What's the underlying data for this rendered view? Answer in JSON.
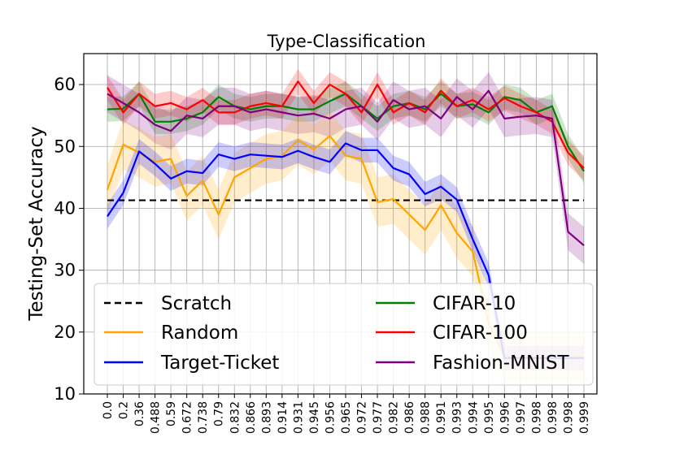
{
  "chart_data": {
    "type": "line",
    "title": "Type-Classification",
    "xlabel": "",
    "ylabel": "Testing-Set Accuracy",
    "ylim": [
      10,
      65
    ],
    "yticks": [
      10,
      20,
      30,
      40,
      50,
      60
    ],
    "grid": true,
    "legend_position": "lower-center",
    "categories": [
      "0.0",
      "0.2",
      "0.36",
      "0.488",
      "0.59",
      "0.672",
      "0.738",
      "0.79",
      "0.832",
      "0.866",
      "0.893",
      "0.914",
      "0.931",
      "0.945",
      "0.956",
      "0.965",
      "0.972",
      "0.977",
      "0.982",
      "0.986",
      "0.988",
      "0.991",
      "0.993",
      "0.994",
      "0.995",
      "0.996",
      "0.997",
      "0.998",
      "0.998",
      "0.998",
      "0.999"
    ],
    "legend_columns": [
      [
        "Scratch",
        "Random",
        "Target-Ticket"
      ],
      [
        "CIFAR-10",
        "CIFAR-100",
        "Fashion-MNIST"
      ]
    ],
    "series": [
      {
        "name": "Scratch",
        "color": "#000000",
        "dash": "8,5",
        "values": [
          41.3,
          41.3,
          41.3,
          41.3,
          41.3,
          41.3,
          41.3,
          41.3,
          41.3,
          41.3,
          41.3,
          41.3,
          41.3,
          41.3,
          41.3,
          41.3,
          41.3,
          41.3,
          41.3,
          41.3,
          41.3,
          41.3,
          41.3,
          41.3,
          41.3,
          41.3,
          41.3,
          41.3,
          41.3,
          41.3,
          41.3
        ],
        "band": 0
      },
      {
        "name": "CIFAR-10",
        "color": "#008000",
        "values": [
          56,
          56.1,
          58.5,
          54,
          54,
          54.5,
          55.5,
          58,
          56.5,
          56,
          56.5,
          56.5,
          56,
          56,
          57.3,
          58.5,
          56.5,
          54.5,
          56.5,
          57,
          56,
          58.5,
          56.5,
          56.8,
          55.5,
          58,
          57.5,
          55.5,
          56.5,
          50,
          46
        ],
        "band": 2
      },
      {
        "name": "CIFAR-100",
        "color": "#ff0000",
        "values": [
          59.5,
          55.5,
          58.5,
          56.5,
          57,
          56,
          57.5,
          55.5,
          55.5,
          56.5,
          57,
          56.5,
          60.5,
          57,
          60,
          58.5,
          55.5,
          60,
          55.5,
          57,
          55.5,
          59,
          56.5,
          57.5,
          56,
          57.8,
          56.5,
          55.5,
          54,
          49,
          46.5
        ],
        "band": 2
      },
      {
        "name": "Fashion-MNIST",
        "color": "#800080",
        "values": [
          58.5,
          57,
          55.5,
          53.5,
          52.5,
          55,
          54.5,
          56.5,
          56.5,
          55.5,
          56,
          55.5,
          55,
          55.3,
          54.5,
          56,
          56.5,
          54,
          57.5,
          56,
          56.5,
          54.5,
          58,
          56,
          59,
          54.5,
          54.8,
          55,
          54.5,
          36.2,
          34
        ],
        "band": 3
      },
      {
        "name": "Random",
        "color": "#ffa500",
        "values": [
          43,
          50.3,
          49,
          47.5,
          48,
          42,
          44.5,
          39,
          45,
          46.5,
          48,
          48.5,
          51,
          49.5,
          51.7,
          48.5,
          48,
          41,
          41.5,
          39,
          36.5,
          40.5,
          36,
          33,
          21.5,
          16,
          16,
          16,
          16,
          16,
          16
        ],
        "band": 4
      },
      {
        "name": "Target-Ticket",
        "color": "#0000ff",
        "values": [
          38.7,
          42.5,
          49.2,
          47.2,
          44.8,
          46,
          45.7,
          48.7,
          48,
          48.7,
          48.5,
          48.3,
          49.3,
          48.3,
          47.5,
          50.5,
          49.4,
          49.4,
          46.5,
          45.5,
          42.3,
          43.5,
          41.4,
          35,
          29.2,
          15.8,
          15.8,
          15.8,
          15.8,
          15.8,
          15.8
        ],
        "band": 2
      }
    ]
  }
}
